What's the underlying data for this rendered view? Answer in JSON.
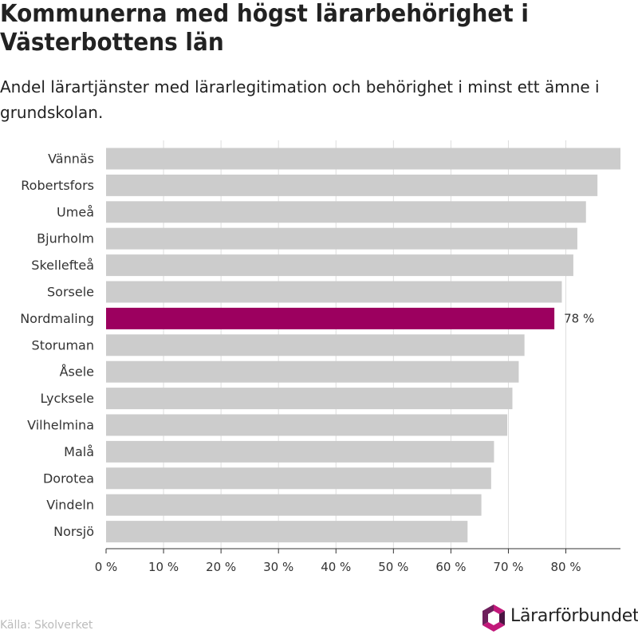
{
  "title": "Kommunerna med högst lärarbehörighet i Västerbottens län",
  "subtitle": "Andel lärartjänster med lärarlegitimation och behörighet i minst ett ämne i grundskolan.",
  "source": "Källa: Skolverket",
  "logo_text": "Lärarförbundet",
  "colors": {
    "bar": "#cccccc",
    "highlight": "#9c005f",
    "grid": "#dddddd",
    "axis": "#333333",
    "logo_pink": "#c2187a",
    "logo_purple": "#6e1f5c",
    "logo_dark": "#4a1442"
  },
  "chart_data": {
    "type": "bar",
    "orientation": "horizontal",
    "title": "Kommunerna med högst lärarbehörighet i Västerbottens län",
    "subtitle": "Andel lärartjänster med lärarlegitimation och behörighet i minst ett ämne i grundskolan.",
    "categories": [
      "Vännäs",
      "Robertsfors",
      "Umeå",
      "Bjurholm",
      "Skellefteå",
      "Sorsele",
      "Nordmaling",
      "Storuman",
      "Åsele",
      "Lycksele",
      "Vilhelmina",
      "Malå",
      "Dorotea",
      "Vindeln",
      "Norsjö"
    ],
    "values": [
      89.5,
      85.5,
      83.5,
      82,
      81.3,
      79.3,
      78,
      72.8,
      71.8,
      70.7,
      69.8,
      67.5,
      67,
      65.3,
      62.9
    ],
    "highlight_index": 6,
    "highlight_label": "78 %",
    "xlim": [
      0,
      89.5
    ],
    "xticks": [
      0,
      10,
      20,
      30,
      40,
      50,
      60,
      70,
      80
    ],
    "xtick_labels": [
      "0 %",
      "10 %",
      "20 %",
      "30 %",
      "40 %",
      "50 %",
      "60 %",
      "70 %",
      "80 %"
    ],
    "xlabel": "",
    "ylabel": "",
    "grid": true,
    "legend": "none"
  }
}
